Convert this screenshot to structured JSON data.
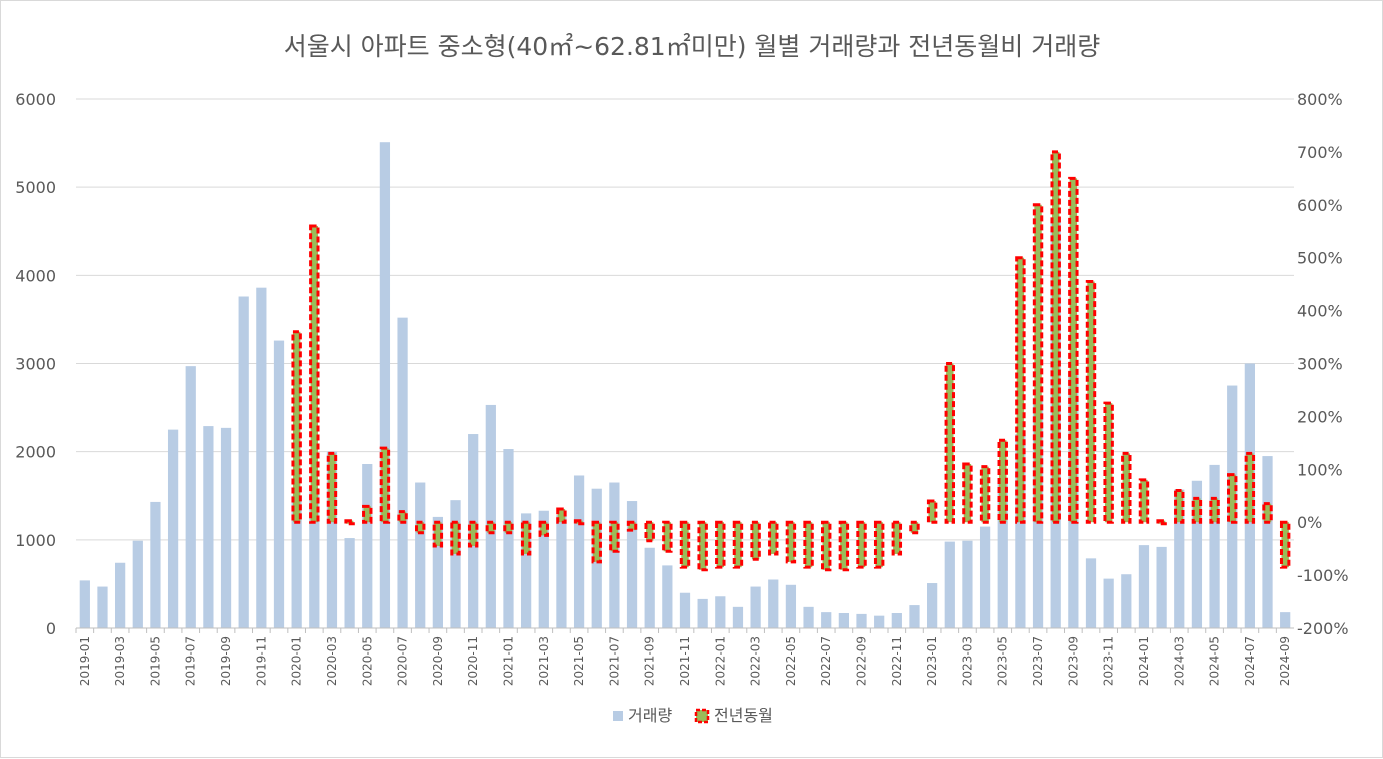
{
  "chart_data": {
    "type": "bar",
    "title": "서울시 아파트 중소형(40㎡~62.81㎡미만)  월별 거래량과 전년동월비 거래량",
    "xlabel": "",
    "ylabel": "",
    "y_left_ticks": [
      "0",
      "1000",
      "2000",
      "3000",
      "4000",
      "5000",
      "6000"
    ],
    "y_right_ticks": [
      "-200%",
      "-100%",
      "0%",
      "100%",
      "200%",
      "300%",
      "400%",
      "500%",
      "600%",
      "700%",
      "800%"
    ],
    "ylim_left": [
      0,
      6000
    ],
    "ylim_right": [
      -200,
      800
    ],
    "grid": true,
    "legend_position": "bottom",
    "categories": [
      "2019-01",
      "2019-02",
      "2019-03",
      "2019-04",
      "2019-05",
      "2019-06",
      "2019-07",
      "2019-08",
      "2019-09",
      "2019-10",
      "2019-11",
      "2019-12",
      "2020-01",
      "2020-02",
      "2020-03",
      "2020-04",
      "2020-05",
      "2020-06",
      "2020-07",
      "2020-08",
      "2020-09",
      "2020-10",
      "2020-11",
      "2020-12",
      "2021-01",
      "2021-02",
      "2021-03",
      "2021-04",
      "2021-05",
      "2021-06",
      "2021-07",
      "2021-08",
      "2021-09",
      "2021-10",
      "2021-11",
      "2021-12",
      "2022-01",
      "2022-02",
      "2022-03",
      "2022-04",
      "2022-05",
      "2022-06",
      "2022-07",
      "2022-08",
      "2022-09",
      "2022-10",
      "2022-11",
      "2022-12",
      "2023-01",
      "2023-02",
      "2023-03",
      "2023-04",
      "2023-05",
      "2023-06",
      "2023-07",
      "2023-08",
      "2023-09",
      "2023-10",
      "2023-11",
      "2023-12",
      "2024-01",
      "2024-02",
      "2024-03",
      "2024-04",
      "2024-05",
      "2024-06",
      "2024-07",
      "2024-08",
      "2024-09"
    ],
    "series": [
      {
        "name": "거래량",
        "axis": "left",
        "color": "#b8cce4",
        "values": [
          540,
          470,
          740,
          990,
          1430,
          2250,
          2970,
          2290,
          2270,
          3760,
          3860,
          3260,
          1500,
          1540,
          2000,
          1020,
          1860,
          5510,
          3520,
          1650,
          1260,
          1450,
          2200,
          2530,
          2030,
          1300,
          1330,
          1280,
          1730,
          1580,
          1650,
          1440,
          910,
          710,
          400,
          330,
          360,
          240,
          470,
          550,
          490,
          240,
          180,
          170,
          160,
          140,
          170,
          260,
          510,
          980,
          990,
          1150,
          1690,
          2200,
          2580,
          4610,
          2900,
          790,
          560,
          610,
          940,
          920,
          1570,
          1670,
          1850,
          2750,
          3000,
          1950,
          180
        ]
      },
      {
        "name": "전년동월",
        "axis": "right",
        "color": "#9bbb59",
        "border_color": "#ff0000",
        "values": [
          null,
          null,
          null,
          null,
          null,
          null,
          null,
          null,
          null,
          null,
          null,
          null,
          360,
          560,
          130,
          0,
          30,
          140,
          20,
          -20,
          -45,
          -60,
          -45,
          -20,
          -20,
          -60,
          -25,
          25,
          5,
          -75,
          -55,
          -15,
          -35,
          -55,
          -85,
          -90,
          -85,
          -85,
          -70,
          -60,
          -75,
          -85,
          -90,
          -90,
          -85,
          -85,
          -60,
          -20,
          40,
          300,
          110,
          105,
          155,
          500,
          600,
          700,
          650,
          455,
          225,
          130,
          80,
          -5,
          60,
          45,
          45,
          90,
          130,
          35,
          -85
        ]
      }
    ]
  }
}
